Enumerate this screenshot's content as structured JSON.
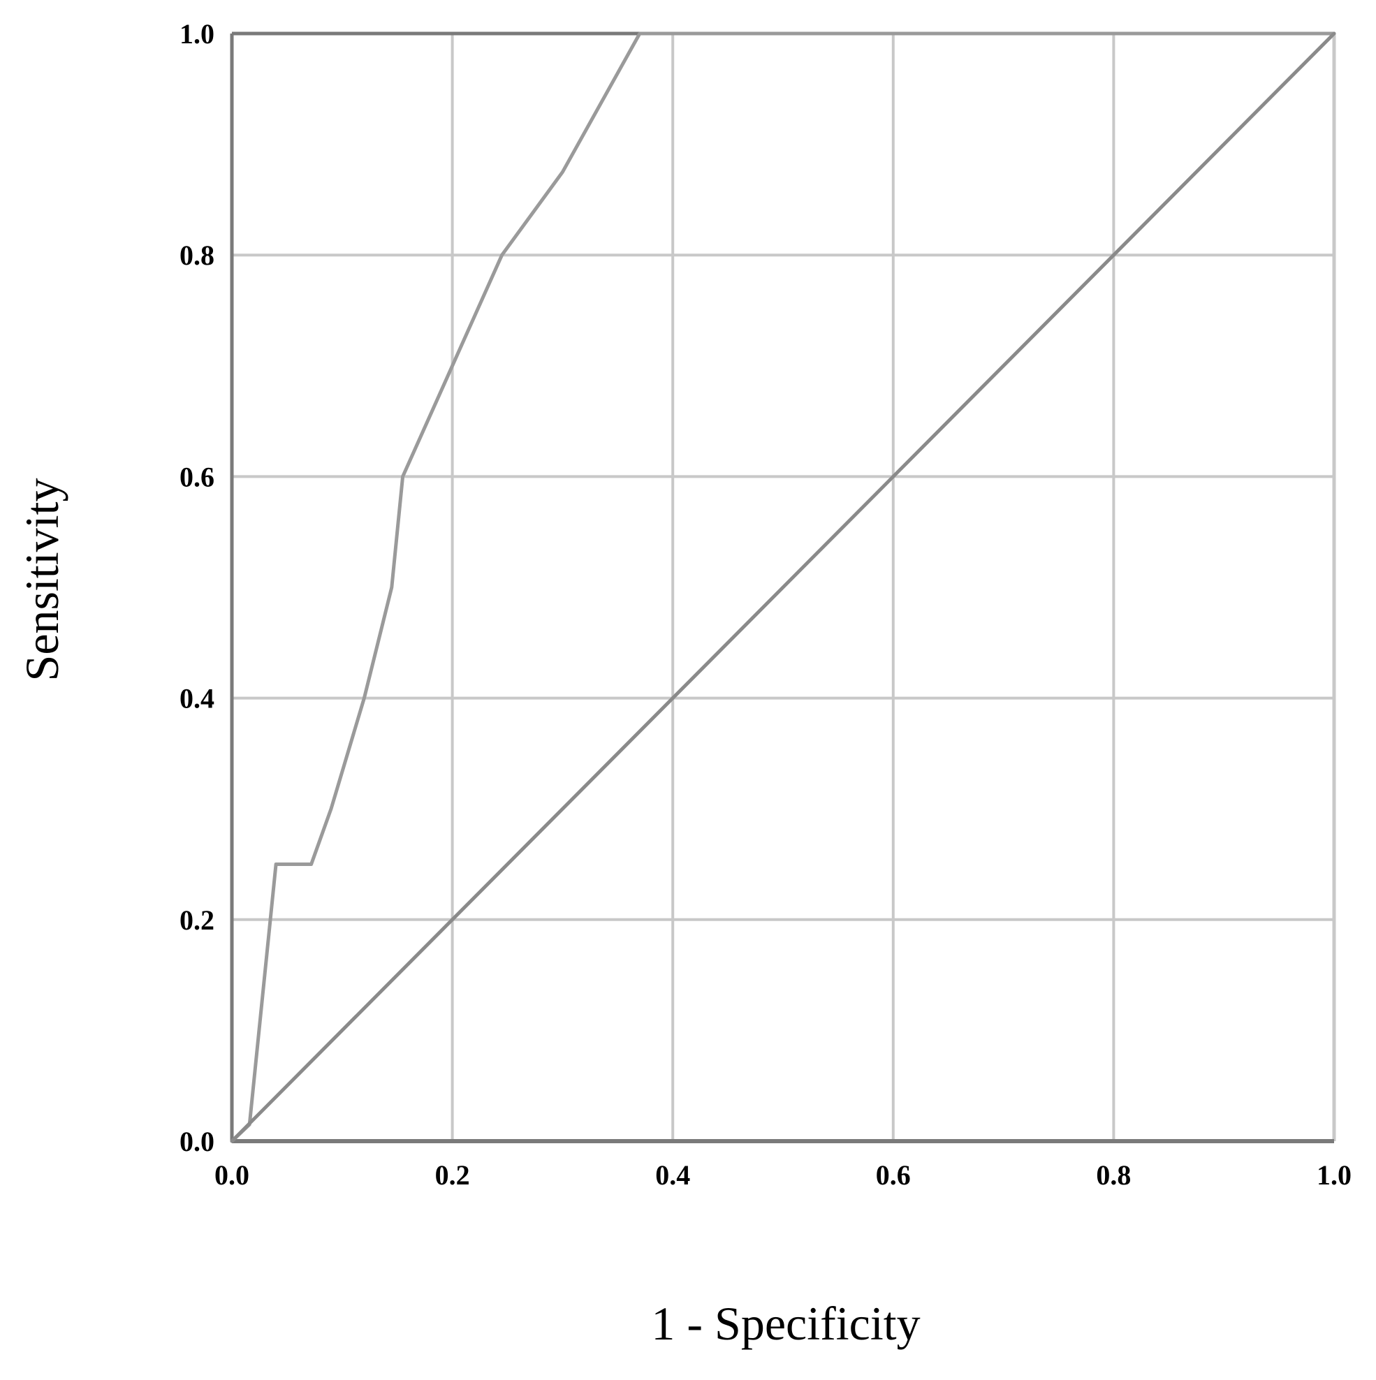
{
  "chart_data": {
    "type": "line",
    "xlabel": "1 - Specificity",
    "ylabel": "Sensitivity",
    "xlim": [
      0,
      1
    ],
    "ylim": [
      0,
      1
    ],
    "grid": true,
    "x_ticks": [
      "0.0",
      "0.2",
      "0.4",
      "0.6",
      "0.8",
      "1.0"
    ],
    "y_ticks": [
      "0.0",
      "0.2",
      "0.4",
      "0.6",
      "0.8",
      "1.0"
    ],
    "series": [
      {
        "key": "roc-curve",
        "color": "#9a9a9a",
        "points": [
          [
            0.0,
            0.0
          ],
          [
            0.016,
            0.015
          ],
          [
            0.04,
            0.25
          ],
          [
            0.072,
            0.25
          ],
          [
            0.09,
            0.3
          ],
          [
            0.12,
            0.4
          ],
          [
            0.145,
            0.5
          ],
          [
            0.155,
            0.6
          ],
          [
            0.2,
            0.7
          ],
          [
            0.245,
            0.8
          ],
          [
            0.3,
            0.875
          ],
          [
            0.37,
            1.0
          ],
          [
            1.0,
            1.0
          ]
        ]
      },
      {
        "key": "reference-line",
        "color": "#8a8a8a",
        "points": [
          [
            0.0,
            0.0
          ],
          [
            1.0,
            1.0
          ]
        ]
      }
    ]
  },
  "colors": {
    "grid": "#c8c8c8",
    "axis": "#7a7a7a",
    "text": "#000000"
  }
}
